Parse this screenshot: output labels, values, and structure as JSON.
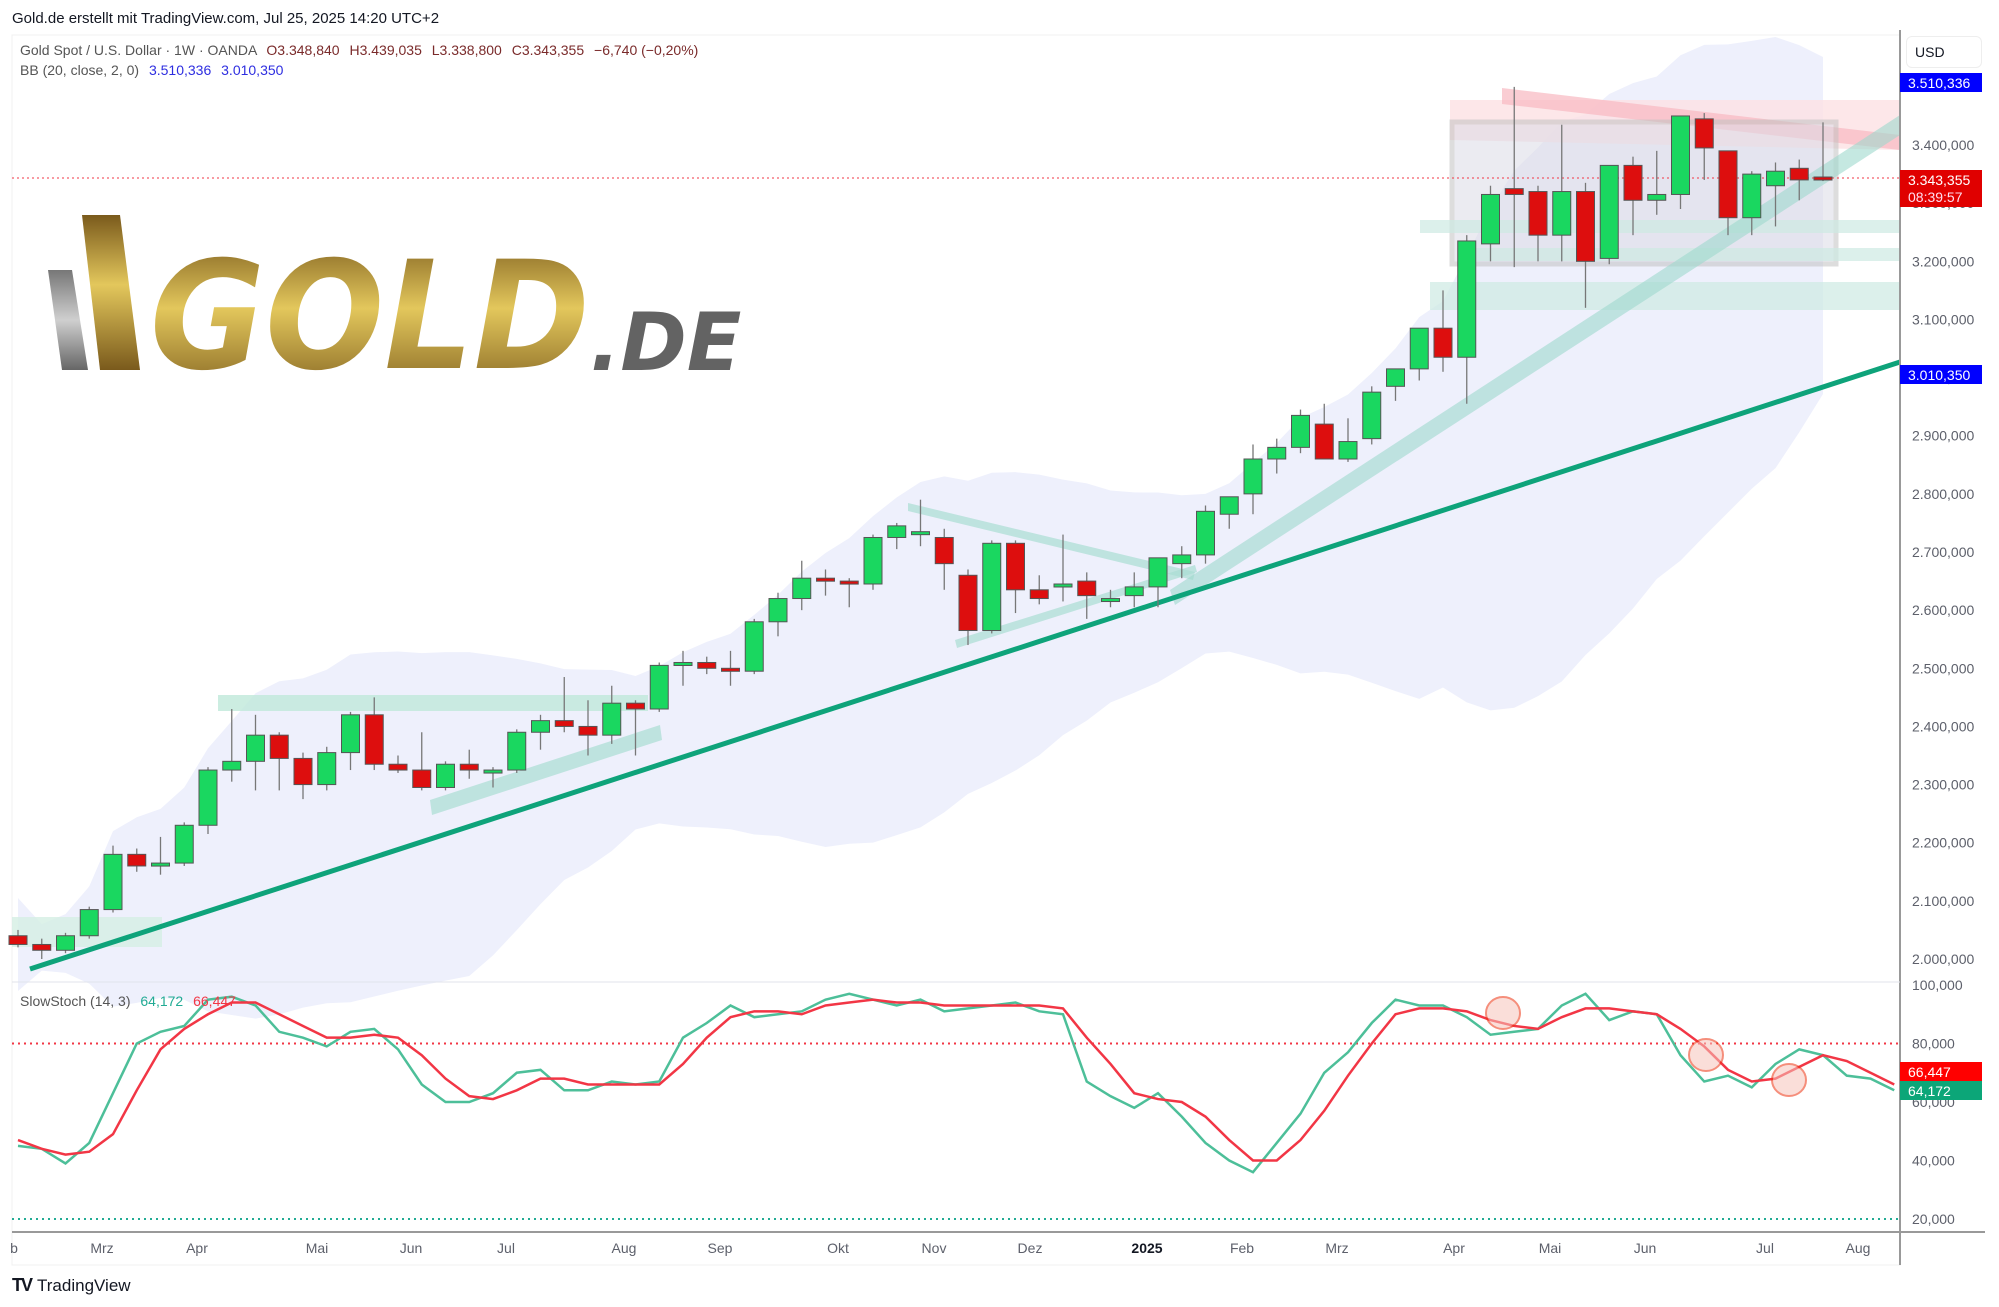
{
  "header": {
    "created_by": "Gold.de erstellt mit TradingView.com, Jul 25, 2025 14:20 UTC+2"
  },
  "legend": {
    "symbol": "Gold Spot / U.S. Dollar · 1W · OANDA",
    "open": "O3.348,840",
    "high": "H3.439,035",
    "low": "L3.338,800",
    "close": "C3.343,355",
    "change": "−6,740 (−0,20%)",
    "bb_label": "BB (20, close, 2, 0)",
    "bb_upper": "3.510,336",
    "bb_lower": "3.010,350",
    "stoch_label": "SlowStoch (14, 3)",
    "stoch_k": "64,172",
    "stoch_d": "66,447"
  },
  "price_axis": {
    "currency": "USD",
    "ticks": [
      "3.400,000",
      "3.300,000",
      "3.200,000",
      "3.100,000",
      "3.000,000",
      "2.900,000",
      "2.800,000",
      "2.700,000",
      "2.600,000",
      "2.500,000",
      "2.400,000",
      "2.300,000",
      "2.200,000",
      "2.100,000",
      "2.000,000"
    ],
    "badges": {
      "bb_upper": "3.510,336",
      "last_price": "3.343,355",
      "countdown": "08:39:57",
      "bb_lower": "3.010,350"
    }
  },
  "stoch_axis": {
    "ticks": [
      "100,000",
      "80,000",
      "60,000",
      "40,000",
      "20,000"
    ],
    "badges": {
      "d": "66,447",
      "k": "64,172"
    }
  },
  "time_axis": {
    "labels": [
      "b",
      "Mrz",
      "Apr",
      "Mai",
      "Jun",
      "Jul",
      "Aug",
      "Sep",
      "Okt",
      "Nov",
      "Dez",
      "2025",
      "Feb",
      "Mrz",
      "Apr",
      "Mai",
      "Jun",
      "Jul",
      "Aug"
    ]
  },
  "logo": {
    "main": "GOLD",
    "suffix": ".DE"
  },
  "footer": {
    "brand": "TradingView"
  },
  "colors": {
    "up": "#1ad760",
    "down": "#dd0e0e",
    "trend": "#0ea37a",
    "bb_fill": "#eef0fc",
    "stoch_k": "#4dbf99",
    "stoch_d": "#f23645",
    "axis_blue": "#0000ff",
    "last_red": "#e00000"
  },
  "chart_data": [
    {
      "type": "candlestick",
      "title": "Gold Spot / U.S. Dollar · 1W · OANDA",
      "ylabel": "USD",
      "ylim": [
        1950,
        3560
      ],
      "x_start": "Feb 2024",
      "x_end": "Jul 2025",
      "candles": [
        [
          2040,
          2050,
          2020,
          2025
        ],
        [
          2025,
          2035,
          2000,
          2015
        ],
        [
          2015,
          2045,
          2010,
          2040
        ],
        [
          2040,
          2090,
          2035,
          2085
        ],
        [
          2085,
          2195,
          2080,
          2180
        ],
        [
          2180,
          2190,
          2150,
          2160
        ],
        [
          2160,
          2210,
          2145,
          2165
        ],
        [
          2165,
          2235,
          2160,
          2230
        ],
        [
          2230,
          2330,
          2215,
          2325
        ],
        [
          2325,
          2430,
          2305,
          2340
        ],
        [
          2340,
          2420,
          2290,
          2385
        ],
        [
          2385,
          2390,
          2290,
          2345
        ],
        [
          2345,
          2355,
          2275,
          2300
        ],
        [
          2300,
          2365,
          2290,
          2355
        ],
        [
          2355,
          2425,
          2325,
          2420
        ],
        [
          2420,
          2450,
          2325,
          2335
        ],
        [
          2335,
          2350,
          2320,
          2325
        ],
        [
          2325,
          2390,
          2290,
          2295
        ],
        [
          2295,
          2340,
          2290,
          2335
        ],
        [
          2335,
          2360,
          2310,
          2325
        ],
        [
          2320,
          2330,
          2295,
          2325
        ],
        [
          2325,
          2395,
          2320,
          2390
        ],
        [
          2390,
          2420,
          2360,
          2410
        ],
        [
          2410,
          2485,
          2390,
          2400
        ],
        [
          2400,
          2445,
          2350,
          2385
        ],
        [
          2385,
          2470,
          2370,
          2440
        ],
        [
          2440,
          2445,
          2350,
          2430
        ],
        [
          2430,
          2510,
          2425,
          2505
        ],
        [
          2505,
          2530,
          2470,
          2510
        ],
        [
          2510,
          2520,
          2490,
          2500
        ],
        [
          2500,
          2530,
          2470,
          2495
        ],
        [
          2495,
          2585,
          2490,
          2580
        ],
        [
          2580,
          2630,
          2555,
          2620
        ],
        [
          2620,
          2685,
          2600,
          2655
        ],
        [
          2655,
          2670,
          2625,
          2650
        ],
        [
          2650,
          2655,
          2605,
          2645
        ],
        [
          2645,
          2730,
          2635,
          2725
        ],
        [
          2725,
          2750,
          2705,
          2745
        ],
        [
          2735,
          2790,
          2710,
          2735
        ],
        [
          2725,
          2740,
          2635,
          2680
        ],
        [
          2660,
          2670,
          2540,
          2565
        ],
        [
          2565,
          2720,
          2560,
          2715
        ],
        [
          2715,
          2720,
          2595,
          2635
        ],
        [
          2635,
          2660,
          2610,
          2620
        ],
        [
          2640,
          2730,
          2615,
          2645
        ],
        [
          2650,
          2665,
          2585,
          2625
        ],
        [
          2620,
          2635,
          2605,
          2620
        ],
        [
          2625,
          2665,
          2605,
          2640
        ],
        [
          2640,
          2690,
          2605,
          2690
        ],
        [
          2680,
          2710,
          2655,
          2695
        ],
        [
          2695,
          2780,
          2680,
          2770
        ],
        [
          2765,
          2795,
          2740,
          2795
        ],
        [
          2800,
          2885,
          2765,
          2860
        ],
        [
          2860,
          2895,
          2835,
          2880
        ],
        [
          2880,
          2945,
          2870,
          2935
        ],
        [
          2920,
          2955,
          2860,
          2860
        ],
        [
          2860,
          2930,
          2855,
          2890
        ],
        [
          2895,
          2985,
          2885,
          2975
        ],
        [
          2985,
          3005,
          2960,
          3015
        ],
        [
          3015,
          3060,
          2995,
          3085
        ],
        [
          3085,
          3150,
          3010,
          3035
        ],
        [
          3035,
          3245,
          2955,
          3235
        ],
        [
          3230,
          3330,
          3200,
          3315
        ],
        [
          3325,
          3500,
          3190,
          3315
        ],
        [
          3320,
          3330,
          3200,
          3245
        ],
        [
          3245,
          3435,
          3200,
          3320
        ],
        [
          3320,
          3335,
          3120,
          3200
        ],
        [
          3205,
          3355,
          3195,
          3365
        ],
        [
          3365,
          3380,
          3245,
          3305
        ],
        [
          3305,
          3390,
          3280,
          3315
        ],
        [
          3315,
          3450,
          3290,
          3450
        ],
        [
          3445,
          3455,
          3340,
          3395
        ],
        [
          3390,
          3390,
          3245,
          3275
        ],
        [
          3275,
          3355,
          3245,
          3350
        ],
        [
          3330,
          3370,
          3260,
          3355
        ],
        [
          3360,
          3375,
          3305,
          3340
        ],
        [
          3345,
          3439,
          3338,
          3343
        ]
      ],
      "bollinger": {
        "upper_last": 3510.336,
        "lower_last": 3010.35
      },
      "horizontal_lines": [
        {
          "label": "last",
          "value": 3343.355
        }
      ]
    },
    {
      "type": "line",
      "title": "SlowStoch (14, 3)",
      "ylim": [
        0,
        105
      ],
      "levels": [
        80,
        20
      ],
      "series": [
        {
          "name": "%K",
          "values": [
            45,
            44,
            39,
            46,
            63,
            80,
            84,
            86,
            95,
            96,
            93,
            84,
            82,
            79,
            84,
            85,
            78,
            66,
            60,
            60,
            63,
            70,
            71,
            64,
            64,
            67,
            66,
            67,
            82,
            87,
            93,
            89,
            90,
            91,
            95,
            97,
            95,
            93,
            95,
            91,
            92,
            93,
            94,
            91,
            90,
            67,
            62,
            58,
            63,
            55,
            46,
            40,
            36,
            46,
            56,
            70,
            77,
            87,
            95,
            93,
            93,
            89,
            83,
            84,
            85,
            93,
            97,
            88,
            91,
            90,
            76,
            67,
            69,
            65,
            73,
            78,
            76,
            69,
            68,
            64
          ]
        },
        {
          "name": "%D",
          "values": [
            47,
            44,
            42,
            43,
            49,
            64,
            78,
            85,
            90,
            94,
            94,
            90,
            86,
            82,
            82,
            83,
            82,
            76,
            68,
            62,
            61,
            64,
            68,
            68,
            66,
            66,
            66,
            66,
            73,
            82,
            89,
            91,
            91,
            90,
            93,
            94,
            95,
            94,
            94,
            93,
            93,
            93,
            93,
            93,
            92,
            82,
            73,
            63,
            61,
            60,
            55,
            47,
            40,
            40,
            47,
            57,
            69,
            80,
            90,
            92,
            92,
            91,
            88,
            86,
            85,
            89,
            92,
            92,
            91,
            90,
            85,
            79,
            71,
            67,
            68,
            72,
            76,
            74,
            70,
            66
          ]
        }
      ]
    }
  ]
}
